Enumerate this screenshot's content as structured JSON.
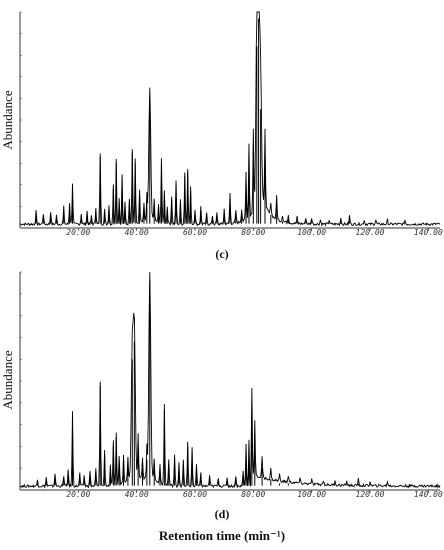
{
  "chart_data": [
    {
      "type": "line",
      "panel_label": "(c)",
      "ylabel": "Abundance",
      "xlabel": "",
      "xlim": [
        0,
        144
      ],
      "ylim": [
        0,
        1.0
      ],
      "x_ticks": [
        "20.00",
        "40.00",
        "60.00",
        "80.00",
        "100.00",
        "120.00",
        "140.00"
      ],
      "x_tick_values": [
        20,
        40,
        60,
        80,
        100,
        120,
        140
      ],
      "peaks": [
        [
          5.5,
          0.06
        ],
        [
          8,
          0.05
        ],
        [
          10.5,
          0.06
        ],
        [
          12.5,
          0.04
        ],
        [
          15,
          0.08
        ],
        [
          17,
          0.1
        ],
        [
          18,
          0.19
        ],
        [
          21,
          0.05
        ],
        [
          23,
          0.06
        ],
        [
          24.5,
          0.04
        ],
        [
          26,
          0.08
        ],
        [
          27.5,
          0.33
        ],
        [
          29,
          0.07
        ],
        [
          30.5,
          0.09
        ],
        [
          32,
          0.18
        ],
        [
          33,
          0.3
        ],
        [
          34,
          0.12
        ],
        [
          35,
          0.23
        ],
        [
          36,
          0.1
        ],
        [
          37.5,
          0.12
        ],
        [
          38.5,
          0.35
        ],
        [
          39.5,
          0.3
        ],
        [
          41,
          0.15
        ],
        [
          42.5,
          0.08
        ],
        [
          43.5,
          0.12
        ],
        [
          44.5,
          0.6
        ],
        [
          46,
          0.1
        ],
        [
          47.5,
          0.08
        ],
        [
          48.5,
          0.3
        ],
        [
          49.5,
          0.15
        ],
        [
          50.5,
          0.08
        ],
        [
          52,
          0.13
        ],
        [
          53.5,
          0.2
        ],
        [
          55,
          0.11
        ],
        [
          56.5,
          0.24
        ],
        [
          57.5,
          0.26
        ],
        [
          58.5,
          0.17
        ],
        [
          60,
          0.07
        ],
        [
          62,
          0.08
        ],
        [
          64,
          0.05
        ],
        [
          66,
          0.04
        ],
        [
          67.5,
          0.05
        ],
        [
          70,
          0.07
        ],
        [
          72,
          0.14
        ],
        [
          74,
          0.06
        ],
        [
          76,
          0.06
        ],
        [
          77.5,
          0.22
        ],
        [
          78.5,
          0.34
        ],
        [
          80,
          0.38
        ],
        [
          81.2,
          0.84
        ],
        [
          81.8,
          0.97
        ],
        [
          82.5,
          0.55
        ],
        [
          84,
          0.36
        ],
        [
          86,
          0.06
        ],
        [
          88,
          0.11
        ],
        [
          90,
          0.03
        ],
        [
          92,
          0.04
        ],
        [
          95,
          0.03
        ],
        [
          98,
          0.03
        ],
        [
          100,
          0.03
        ],
        [
          103,
          0.02
        ],
        [
          106,
          0.02
        ],
        [
          110,
          0.03
        ],
        [
          113,
          0.04
        ],
        [
          118,
          0.02
        ],
        [
          122,
          0.02
        ],
        [
          126,
          0.02
        ],
        [
          132,
          0.02
        ]
      ]
    },
    {
      "type": "line",
      "panel_label": "(d)",
      "ylabel": "Abundance",
      "xlabel": "Retention time (min⁻¹)",
      "xlim": [
        0,
        144
      ],
      "ylim": [
        0,
        1.0
      ],
      "x_ticks": [
        "20.00",
        "40.00",
        "60.00",
        "80.00",
        "100.00",
        "120.00",
        "140.00"
      ],
      "x_tick_values": [
        20,
        40,
        60,
        80,
        100,
        120,
        140
      ],
      "peaks": [
        [
          6,
          0.03
        ],
        [
          9,
          0.04
        ],
        [
          12,
          0.06
        ],
        [
          15,
          0.05
        ],
        [
          16.5,
          0.08
        ],
        [
          18,
          0.34
        ],
        [
          20.5,
          0.06
        ],
        [
          22,
          0.05
        ],
        [
          24,
          0.07
        ],
        [
          26,
          0.08
        ],
        [
          27.5,
          0.48
        ],
        [
          29,
          0.16
        ],
        [
          31,
          0.09
        ],
        [
          32,
          0.2
        ],
        [
          33,
          0.24
        ],
        [
          34,
          0.13
        ],
        [
          35.5,
          0.13
        ],
        [
          37,
          0.1
        ],
        [
          38.5,
          0.6
        ],
        [
          39.2,
          0.68
        ],
        [
          40.5,
          0.2
        ],
        [
          42,
          0.1
        ],
        [
          43.5,
          0.14
        ],
        [
          44.5,
          0.96
        ],
        [
          46,
          0.1
        ],
        [
          48,
          0.09
        ],
        [
          49.5,
          0.37
        ],
        [
          51,
          0.12
        ],
        [
          53,
          0.14
        ],
        [
          54.5,
          0.11
        ],
        [
          56,
          0.12
        ],
        [
          57.5,
          0.2
        ],
        [
          59,
          0.18
        ],
        [
          60.5,
          0.1
        ],
        [
          62,
          0.06
        ],
        [
          65,
          0.05
        ],
        [
          68,
          0.04
        ],
        [
          71,
          0.04
        ],
        [
          74,
          0.05
        ],
        [
          76.5,
          0.07
        ],
        [
          77.5,
          0.19
        ],
        [
          78.5,
          0.21
        ],
        [
          79.5,
          0.4
        ],
        [
          80.5,
          0.25
        ],
        [
          83,
          0.1
        ],
        [
          86,
          0.05
        ],
        [
          89,
          0.03
        ],
        [
          92,
          0.03
        ],
        [
          96,
          0.02
        ],
        [
          100,
          0.02
        ],
        [
          104,
          0.02
        ],
        [
          108,
          0.02
        ],
        [
          112,
          0.02
        ],
        [
          116,
          0.03
        ],
        [
          120,
          0.02
        ],
        [
          126,
          0.02
        ]
      ]
    }
  ]
}
